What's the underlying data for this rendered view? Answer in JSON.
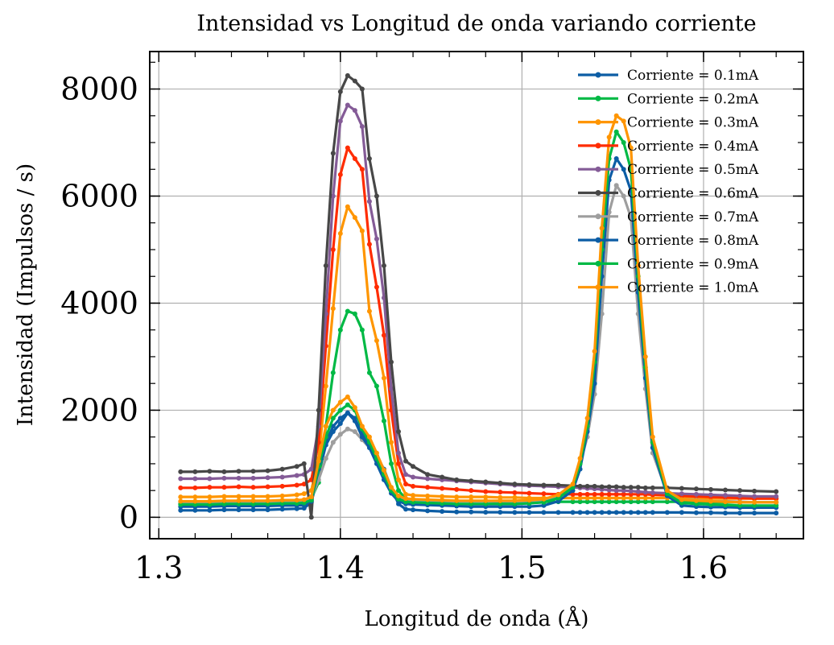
{
  "chart_data": {
    "type": "line",
    "title": "Intensidad vs Longitud de onda variando corriente",
    "xlabel": "Longitud de onda (Å)",
    "ylabel": "Intensidad (Impulsos / s)",
    "xlim": [
      1.295,
      1.655
    ],
    "ylim": [
      -400,
      8700
    ],
    "xticks": [
      1.3,
      1.4,
      1.5,
      1.6
    ],
    "xtick_labels": [
      "1.3",
      "1.4",
      "1.5",
      "1.6"
    ],
    "yticks": [
      0,
      2000,
      4000,
      6000,
      8000
    ],
    "ytick_labels": [
      "0",
      "2000",
      "4000",
      "6000",
      "8000"
    ],
    "grid": true,
    "legend_position": "top-right",
    "x": [
      1.312,
      1.32,
      1.328,
      1.336,
      1.344,
      1.352,
      1.36,
      1.368,
      1.376,
      1.38,
      1.384,
      1.388,
      1.392,
      1.396,
      1.4,
      1.404,
      1.408,
      1.412,
      1.416,
      1.42,
      1.424,
      1.428,
      1.432,
      1.436,
      1.44,
      1.448,
      1.456,
      1.464,
      1.472,
      1.48,
      1.488,
      1.496,
      1.504,
      1.512,
      1.52,
      1.528,
      1.532,
      1.536,
      1.54,
      1.544,
      1.548,
      1.552,
      1.556,
      1.56,
      1.564,
      1.568,
      1.572,
      1.58,
      1.588,
      1.596,
      1.604,
      1.612,
      1.62,
      1.628,
      1.64
    ],
    "series": [
      {
        "name": "Corriente = 0.1mA",
        "color": "#0c5da5",
        "values": [
          130,
          130,
          130,
          140,
          140,
          140,
          140,
          150,
          160,
          170,
          280,
          800,
          1350,
          1600,
          1750,
          1950,
          1850,
          1550,
          1350,
          1150,
          900,
          550,
          250,
          150,
          140,
          120,
          110,
          100,
          100,
          95,
          95,
          90,
          90,
          90,
          90,
          90,
          90,
          90,
          90,
          90,
          90,
          90,
          90,
          90,
          90,
          90,
          90,
          90,
          90,
          85,
          85,
          80,
          80,
          80,
          80
        ]
      },
      {
        "name": "Corriente = 0.2mA",
        "color": "#00b945",
        "values": [
          250,
          250,
          250,
          260,
          260,
          260,
          260,
          270,
          280,
          300,
          350,
          650,
          1700,
          2700,
          3500,
          3850,
          3800,
          3500,
          2700,
          2450,
          1800,
          1000,
          500,
          350,
          330,
          320,
          310,
          300,
          300,
          300,
          290,
          290,
          290,
          290,
          290,
          290,
          290,
          290,
          290,
          290,
          290,
          290,
          290,
          290,
          290,
          290,
          290,
          290,
          290,
          280,
          280,
          280,
          280,
          280,
          280
        ]
      },
      {
        "name": "Corriente = 0.3mA",
        "color": "#ff9500",
        "values": [
          380,
          380,
          380,
          390,
          390,
          390,
          390,
          400,
          420,
          440,
          500,
          1100,
          2450,
          3900,
          5300,
          5800,
          5600,
          5350,
          3850,
          3300,
          2600,
          1400,
          700,
          430,
          410,
          400,
          390,
          380,
          380,
          380,
          370,
          370,
          360,
          360,
          360,
          360,
          360,
          360,
          360,
          360,
          360,
          360,
          360,
          360,
          360,
          360,
          360,
          360,
          360,
          350,
          350,
          350,
          350,
          350,
          350
        ]
      },
      {
        "name": "Corriente = 0.4mA",
        "color": "#ff2c00",
        "values": [
          550,
          550,
          560,
          560,
          570,
          560,
          570,
          580,
          600,
          620,
          700,
          1400,
          3200,
          5000,
          6400,
          6900,
          6700,
          6500,
          5100,
          4300,
          3400,
          2000,
          1000,
          620,
          580,
          560,
          540,
          520,
          500,
          480,
          470,
          460,
          450,
          440,
          430,
          430,
          430,
          430,
          430,
          430,
          430,
          430,
          430,
          430,
          430,
          430,
          420,
          410,
          400,
          390,
          380,
          370,
          360,
          350,
          350
        ]
      },
      {
        "name": "Corriente = 0.5mA",
        "color": "#845b97",
        "values": [
          720,
          720,
          720,
          730,
          730,
          730,
          740,
          750,
          780,
          800,
          900,
          1700,
          3800,
          6000,
          7400,
          7700,
          7600,
          7300,
          5900,
          5200,
          4100,
          2400,
          1200,
          800,
          750,
          720,
          700,
          680,
          660,
          640,
          620,
          600,
          590,
          580,
          570,
          560,
          550,
          540,
          530,
          520,
          510,
          500,
          500,
          490,
          480,
          470,
          460,
          450,
          440,
          430,
          420,
          410,
          400,
          390,
          390
        ]
      },
      {
        "name": "Corriente = 0.6mA",
        "color": "#474747",
        "values": [
          850,
          850,
          860,
          850,
          860,
          860,
          870,
          900,
          950,
          1000,
          0,
          2000,
          4700,
          6800,
          7950,
          8250,
          8150,
          8000,
          6700,
          6000,
          4700,
          2900,
          1600,
          1050,
          950,
          800,
          750,
          700,
          680,
          660,
          640,
          620,
          610,
          600,
          600,
          590,
          580,
          580,
          580,
          570,
          570,
          570,
          560,
          560,
          560,
          550,
          550,
          550,
          540,
          530,
          520,
          510,
          500,
          490,
          480
        ]
      },
      {
        "name": "Corriente = 0.7mA",
        "color": "#9e9e9e",
        "values": [
          280,
          280,
          280,
          290,
          290,
          290,
          290,
          300,
          300,
          310,
          350,
          700,
          1100,
          1400,
          1550,
          1650,
          1600,
          1450,
          1300,
          1100,
          800,
          500,
          350,
          330,
          320,
          310,
          300,
          300,
          300,
          300,
          300,
          300,
          300,
          320,
          400,
          600,
          1000,
          1500,
          2300,
          3800,
          5700,
          6200,
          6000,
          5600,
          3800,
          2400,
          1200,
          450,
          330,
          320,
          300,
          300,
          290,
          280,
          280
        ]
      },
      {
        "name": "Corriente = 0.8mA",
        "color": "#0c5da5",
        "values": [
          200,
          200,
          200,
          210,
          210,
          210,
          210,
          220,
          220,
          230,
          300,
          900,
          1400,
          1700,
          1850,
          1950,
          1800,
          1500,
          1300,
          1000,
          700,
          450,
          300,
          250,
          240,
          230,
          220,
          210,
          200,
          200,
          200,
          200,
          200,
          220,
          300,
          500,
          900,
          1600,
          2500,
          4500,
          6300,
          6700,
          6500,
          6100,
          4200,
          2600,
          1300,
          400,
          220,
          200,
          190,
          190,
          180,
          180,
          180
        ]
      },
      {
        "name": "Corriente = 0.9mA",
        "color": "#00b945",
        "values": [
          240,
          240,
          240,
          250,
          250,
          250,
          250,
          260,
          260,
          270,
          320,
          950,
          1500,
          1850,
          2000,
          2100,
          2000,
          1650,
          1400,
          1100,
          800,
          500,
          340,
          290,
          280,
          270,
          260,
          250,
          250,
          250,
          250,
          250,
          260,
          280,
          360,
          560,
          1000,
          1700,
          2900,
          5000,
          6700,
          7200,
          7000,
          6500,
          4500,
          2800,
          1400,
          440,
          270,
          250,
          240,
          230,
          220,
          220,
          220
        ]
      },
      {
        "name": "Corriente = 1.0mA",
        "color": "#ff9500",
        "values": [
          300,
          300,
          300,
          310,
          310,
          310,
          310,
          320,
          320,
          330,
          380,
          1050,
          1700,
          2000,
          2150,
          2250,
          2050,
          1700,
          1500,
          1200,
          880,
          560,
          400,
          350,
          340,
          330,
          320,
          310,
          310,
          310,
          310,
          310,
          320,
          340,
          420,
          620,
          1100,
          1850,
          3100,
          5400,
          7100,
          7500,
          7400,
          6900,
          4700,
          3000,
          1500,
          500,
          330,
          310,
          300,
          290,
          280,
          280,
          280
        ]
      }
    ]
  }
}
